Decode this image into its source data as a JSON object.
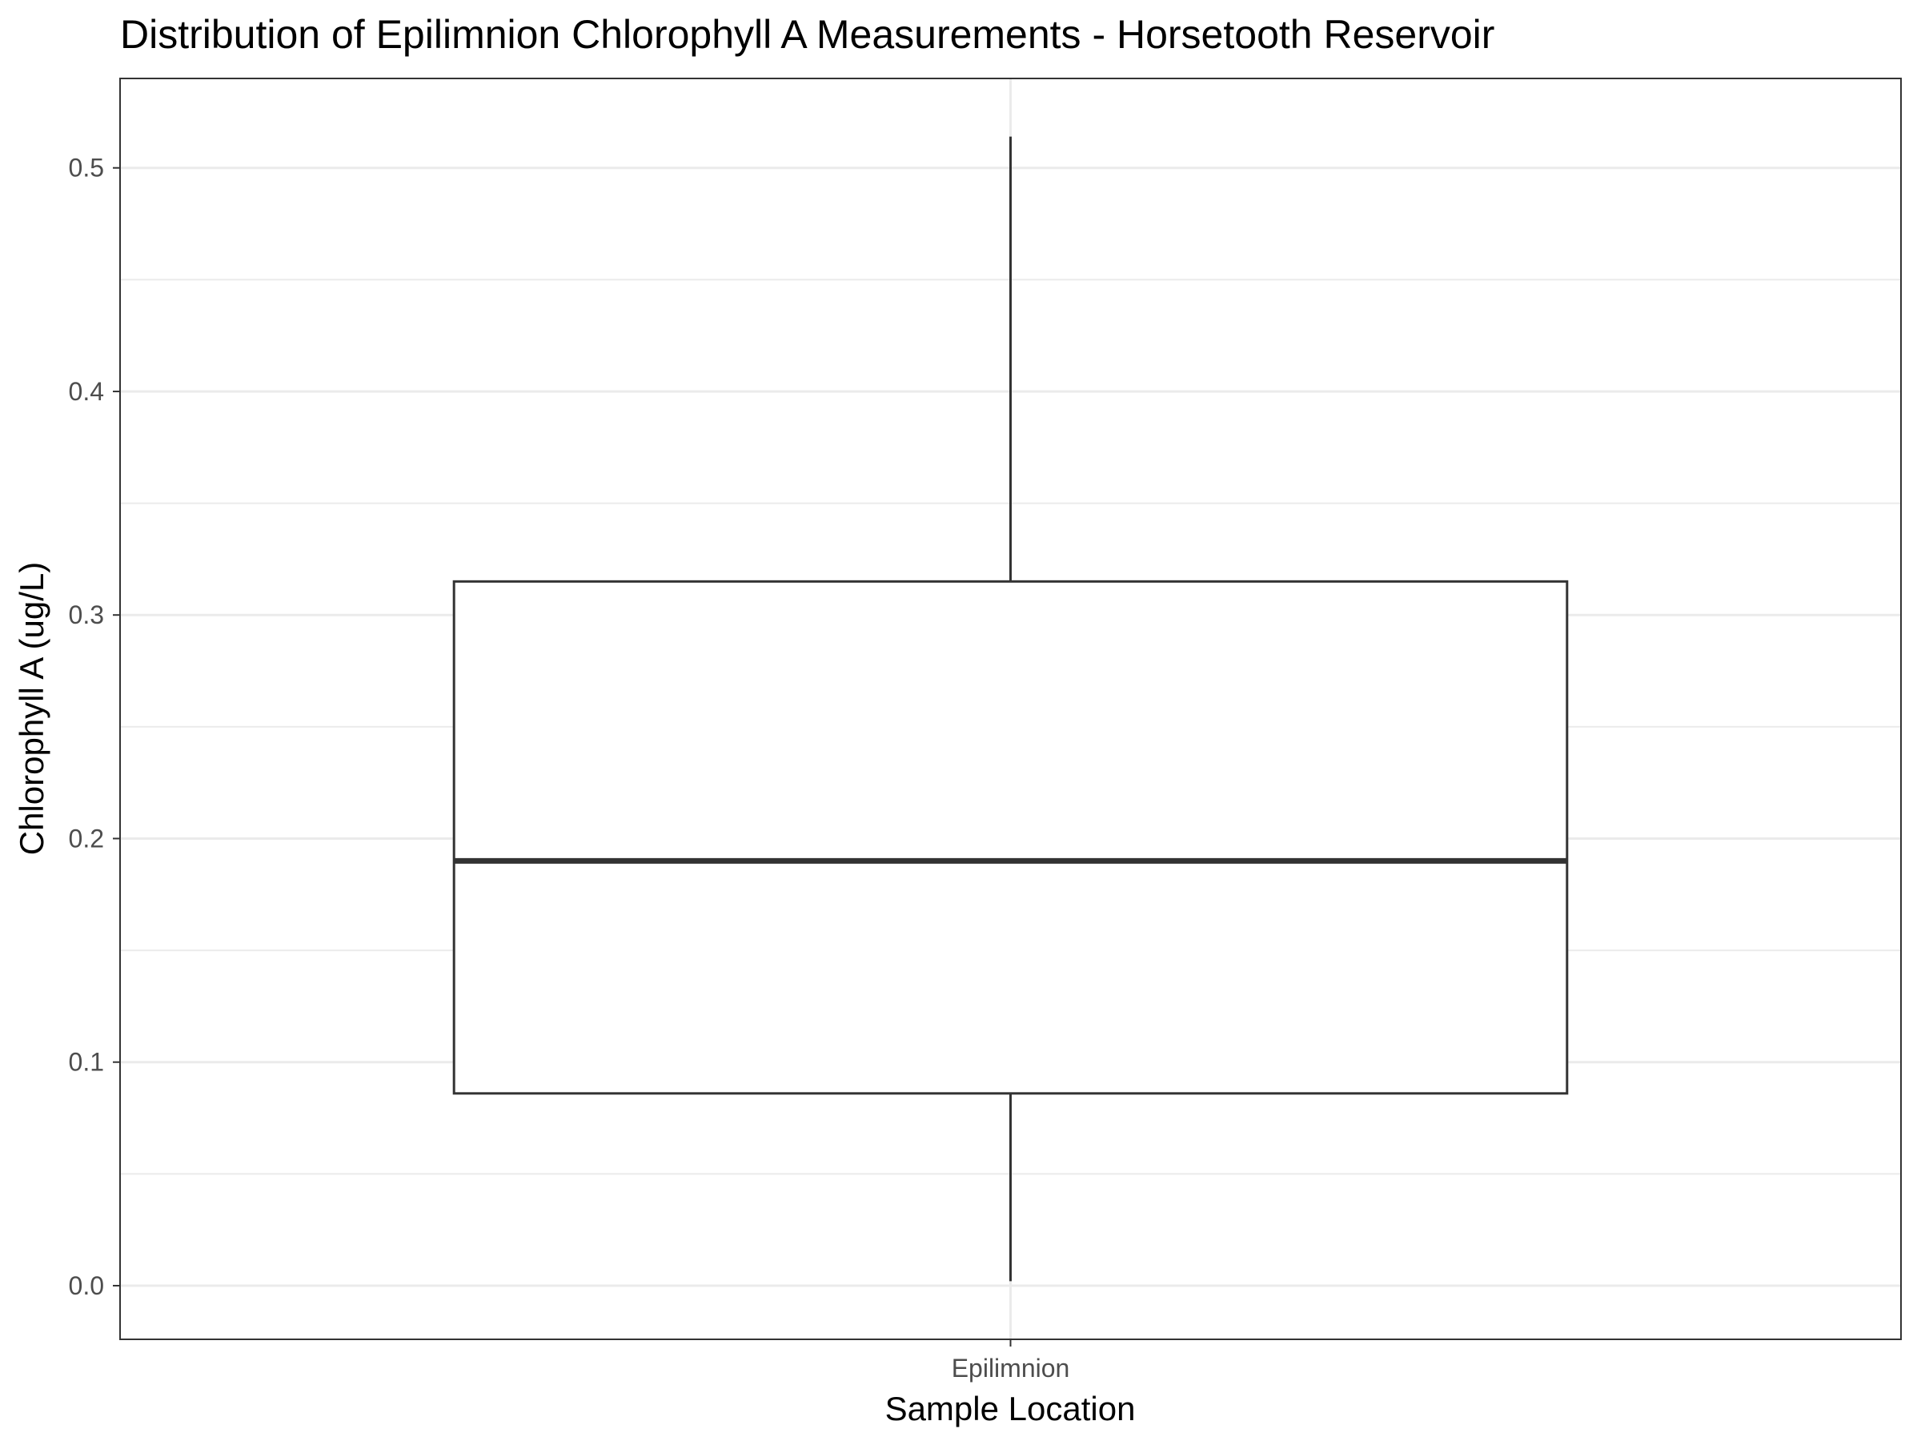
{
  "chart_data": {
    "type": "boxplot",
    "title": "Distribution of Epilimnion Chlorophyll A Measurements - Horsetooth Reservoir",
    "xlabel": "Sample Location",
    "ylabel": "Chlorophyll A (ug/L)",
    "categories": [
      "Epilimnion"
    ],
    "boxes": [
      {
        "category": "Epilimnion",
        "min": 0.002,
        "q1": 0.086,
        "median": 0.19,
        "q3": 0.315,
        "max": 0.514
      }
    ],
    "ylim": [
      -0.024,
      0.54
    ],
    "yticks": [
      0.0,
      0.1,
      0.2,
      0.3,
      0.4,
      0.5
    ],
    "ytick_labels": [
      "0.0",
      "0.1",
      "0.2",
      "0.3",
      "0.4",
      "0.5"
    ],
    "grid": true,
    "colors": {
      "grid": "#ebebeb",
      "box_stroke": "#333333",
      "panel_border": "#333333",
      "tick_text": "#4d4d4d"
    }
  }
}
